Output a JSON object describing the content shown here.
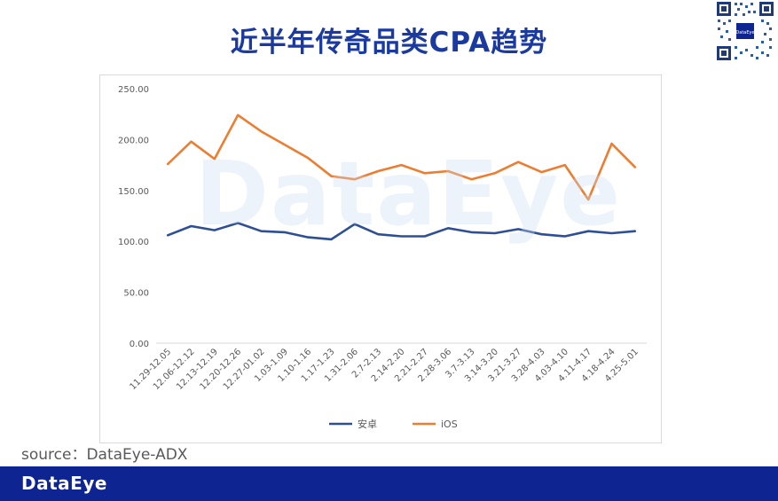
{
  "header": {
    "title": "近半年传奇品类CPA趋势"
  },
  "watermark": "DataEye",
  "source_text": "source：DataEye-ADX",
  "footer": {
    "logo_text": "DataEye",
    "background_color": "#0e2591"
  },
  "qr_code": {
    "icon": "qr-code-icon",
    "center_label": "DataEye"
  },
  "chart_data": {
    "type": "line",
    "categories": [
      "11.29-12.05",
      "12.06-12.12",
      "12.13-12.19",
      "12.20-12.26",
      "12.27-01.02",
      "1.03-1.09",
      "1.10-1.16",
      "1.17-1.23",
      "1.31-2.06",
      "2.7-2.13",
      "2.14-2.20",
      "2.21-2.27",
      "2.28-3.06",
      "3.7-3.13",
      "3.14-3.20",
      "3.21-3.27",
      "3.28-4.03",
      "4.03-4.10",
      "4.11-4.17",
      "4.18-4.24",
      "4.25-5.01"
    ],
    "series": [
      {
        "name": "安卓",
        "color": "#2e4f96",
        "values": [
          106,
          115,
          111,
          118,
          110,
          109,
          104,
          102,
          117,
          107,
          105,
          105,
          113,
          109,
          108,
          112,
          107,
          105,
          110,
          108,
          110
        ]
      },
      {
        "name": "iOS",
        "color": "#ed7d31",
        "values": [
          176,
          198,
          181,
          224,
          208,
          195,
          182,
          164,
          161,
          169,
          175,
          167,
          169,
          161,
          167,
          178,
          168,
          175,
          141,
          196,
          173
        ]
      }
    ],
    "y_ticks": [
      "0.00",
      "50.00",
      "100.00",
      "150.00",
      "200.00",
      "250.00"
    ],
    "ylim": [
      0,
      250
    ],
    "grid": false,
    "legend_position": "bottom"
  }
}
